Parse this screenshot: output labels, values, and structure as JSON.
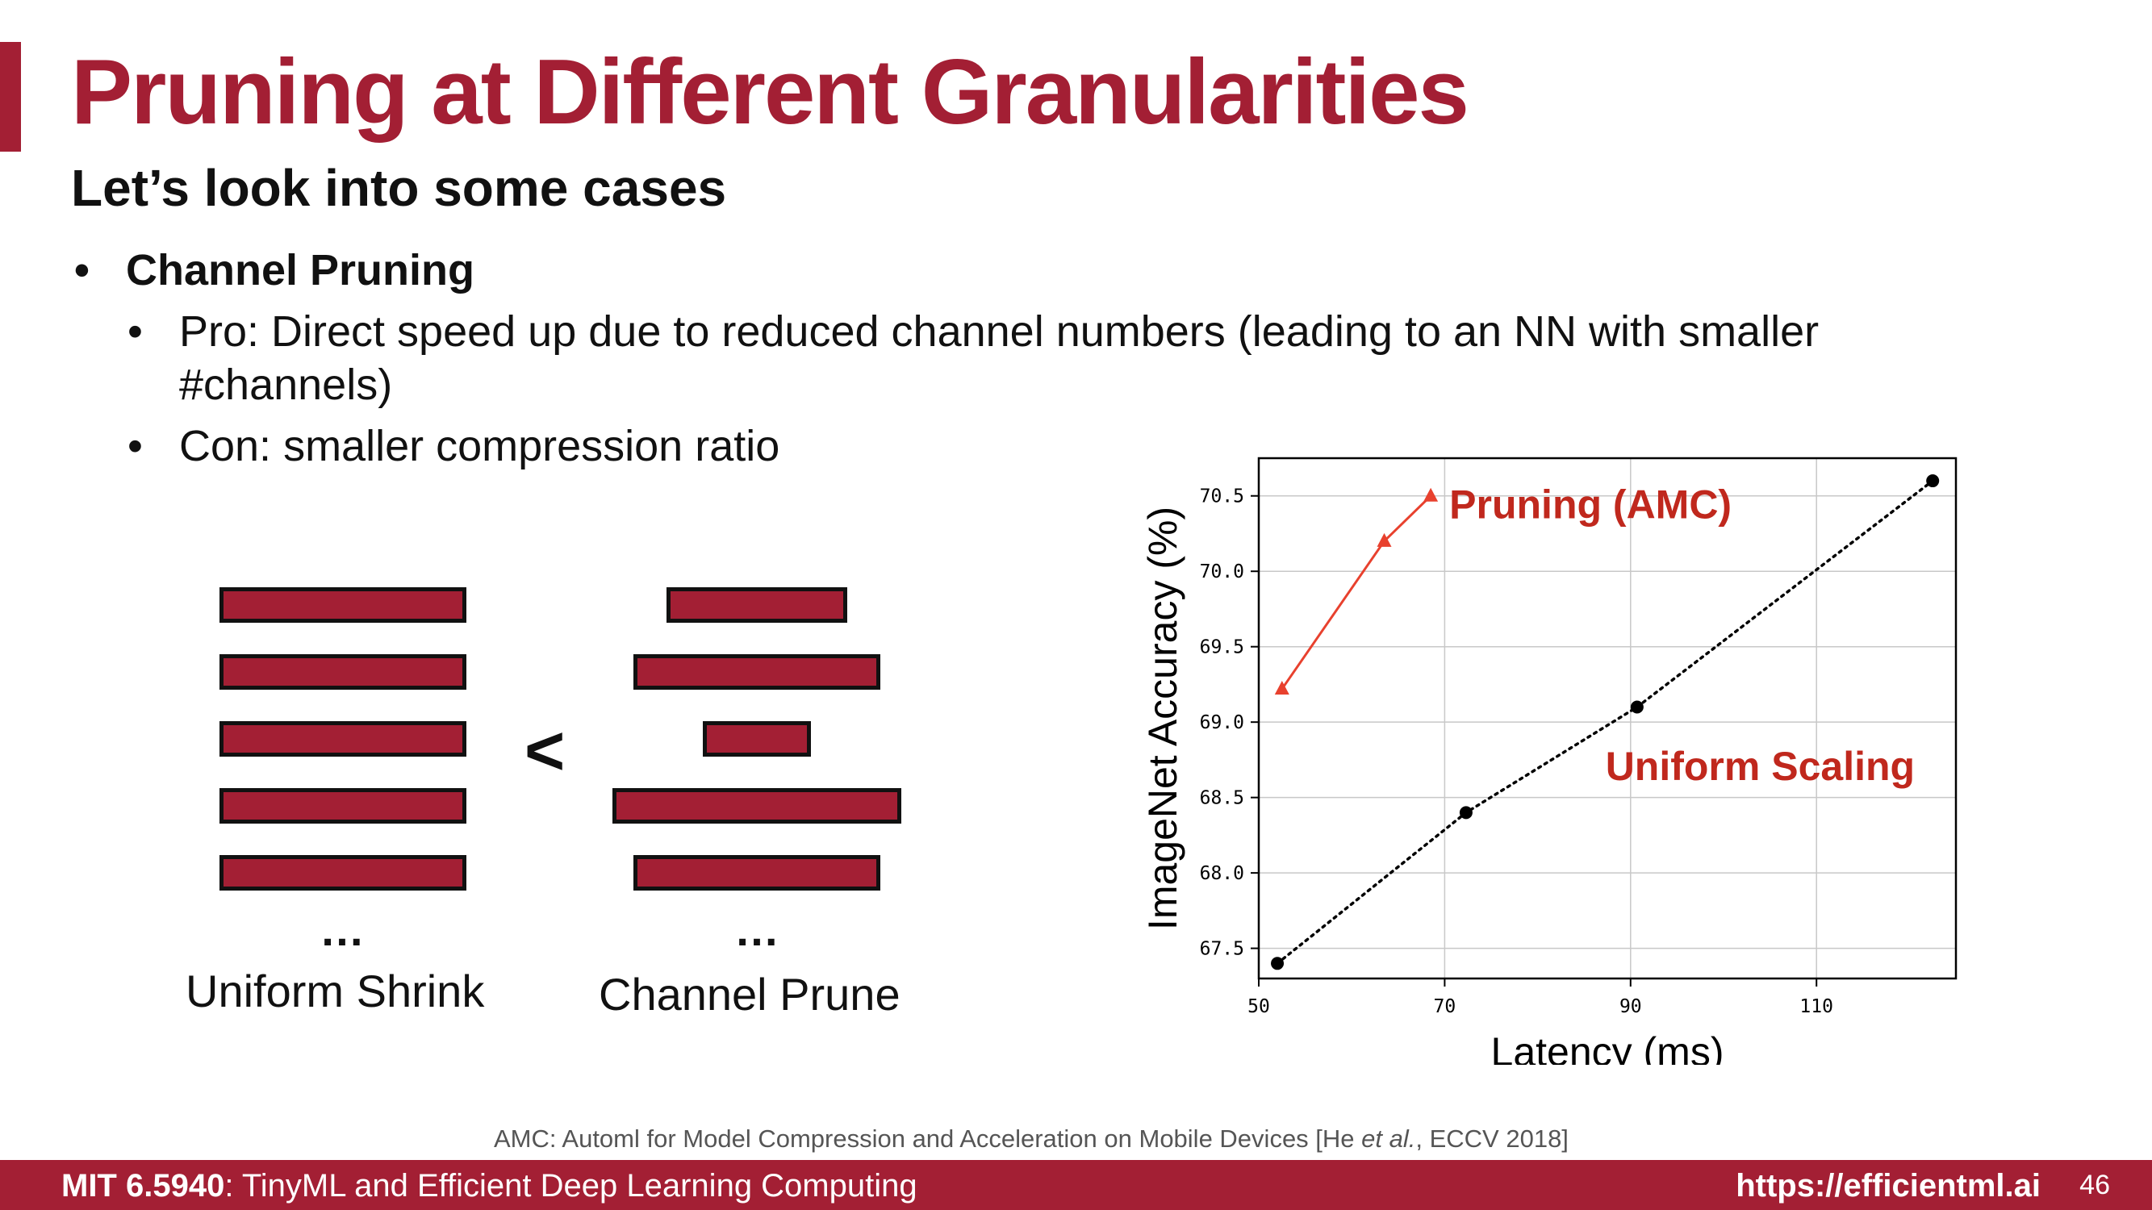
{
  "slide": {
    "title": "Pruning at Different Granularities",
    "subtitle": "Let’s look into some cases",
    "bullets": {
      "main": "Channel Pruning",
      "pro_line1": "Pro: Direct speed up due to reduced channel numbers (leading to an NN with smaller",
      "pro_line2": "#channels)",
      "con": "Con: smaller compression ratio",
      "dot": "•"
    }
  },
  "illustration": {
    "left_caption": "Uniform Shrink",
    "right_caption": "Channel Prune",
    "comparison_symbol": "<",
    "ellipsis": "…",
    "block_color": "#a31f34",
    "uniform_widths": [
      1,
      1,
      1,
      1,
      1
    ],
    "pruned_widths": [
      0.73,
      1.0,
      0.44,
      1.17,
      1.0
    ]
  },
  "chart_data": {
    "type": "line",
    "xlabel": "Latency (ms)",
    "ylabel": "ImageNet Accuracy (%)",
    "xlim": [
      50,
      125
    ],
    "ylim": [
      67.3,
      70.75
    ],
    "xticks": [
      50,
      70,
      90,
      110
    ],
    "yticks": [
      67.5,
      68.0,
      68.5,
      69.0,
      69.5,
      70.0,
      70.5
    ],
    "grid": true,
    "series": [
      {
        "name": "Pruning (AMC)",
        "color": "#e8412e",
        "marker": "triangle",
        "style": "solid",
        "x": [
          52.5,
          63.5,
          68.5
        ],
        "y": [
          69.22,
          70.2,
          70.5
        ]
      },
      {
        "name": "Uniform Scaling",
        "color": "#000000",
        "marker": "circle",
        "style": "dotted",
        "x": [
          52.0,
          72.3,
          90.7,
          122.5
        ],
        "y": [
          67.4,
          68.4,
          69.1,
          70.6
        ]
      }
    ]
  },
  "citation": {
    "before": "AMC: Automl for Model Compression and Acceleration on Mobile Devices [He ",
    "italic": "et al.",
    "after": ", ECCV 2018]"
  },
  "footer": {
    "course_bold": "MIT 6.5940",
    "course_rest": ": TinyML and Efficient Deep Learning Computing",
    "url": "https://efficientml.ai",
    "page": "46"
  },
  "colors": {
    "accent": "#a31f34",
    "amc": "#c0281d"
  }
}
